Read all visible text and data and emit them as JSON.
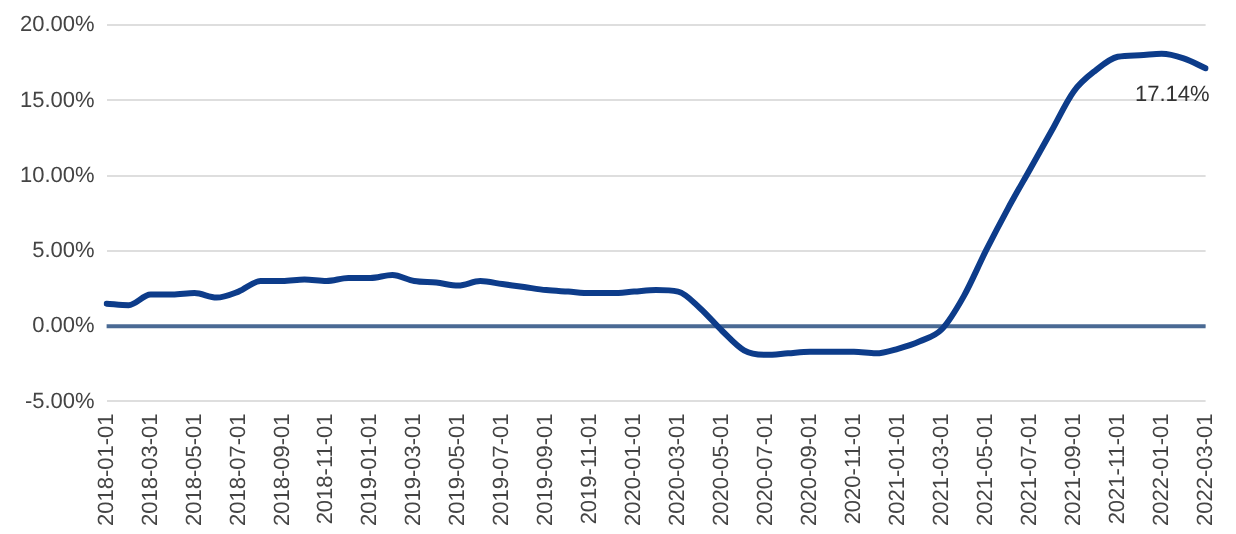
{
  "chart_data": {
    "type": "line",
    "categories": [
      "2018-01-01",
      null,
      "2018-03-01",
      null,
      "2018-05-01",
      null,
      "2018-07-01",
      null,
      "2018-09-01",
      null,
      "2018-11-01",
      null,
      "2019-01-01",
      null,
      "2019-03-01",
      null,
      "2019-05-01",
      null,
      "2019-07-01",
      null,
      "2019-09-01",
      null,
      "2019-11-01",
      null,
      "2020-01-01",
      null,
      "2020-03-01",
      null,
      "2020-05-01",
      null,
      "2020-07-01",
      null,
      "2020-09-01",
      null,
      "2020-11-01",
      null,
      "2021-01-01",
      null,
      "2021-03-01",
      null,
      "2021-05-01",
      null,
      "2021-07-01",
      null,
      "2021-09-01",
      null,
      "2021-11-01",
      null,
      "2022-01-01",
      null,
      "2022-03-01"
    ],
    "series": [
      {
        "color": "#0d3c8a",
        "values": [
          1.5,
          1.4,
          2.1,
          2.1,
          2.2,
          1.9,
          2.3,
          3.0,
          3.0,
          3.1,
          3.0,
          3.2,
          3.2,
          3.4,
          3.0,
          2.9,
          2.7,
          3.0,
          2.8,
          2.6,
          2.4,
          2.3,
          2.2,
          2.2,
          2.3,
          2.4,
          2.3,
          1.2,
          -0.3,
          -1.6,
          -1.9,
          -1.8,
          -1.7,
          -1.7,
          -1.7,
          -1.8,
          -1.5,
          -1.0,
          -0.2,
          2.0,
          5.0,
          7.8,
          10.4,
          13.0,
          15.6,
          17.0,
          17.9,
          18.0,
          18.1,
          17.8,
          17.14
        ],
        "value_labels": [
          null,
          null,
          null,
          null,
          null,
          null,
          null,
          null,
          null,
          null,
          null,
          null,
          null,
          null,
          null,
          null,
          null,
          null,
          null,
          null,
          null,
          null,
          null,
          null,
          null,
          null,
          null,
          null,
          null,
          null,
          null,
          null,
          null,
          null,
          null,
          null,
          null,
          null,
          null,
          null,
          null,
          null,
          null,
          null,
          null,
          null,
          null,
          null,
          null,
          null,
          "17.14%"
        ]
      }
    ],
    "ylim": [
      -5,
      20
    ],
    "yticks": [
      {
        "value": -5,
        "label": "-5.00%"
      },
      {
        "value": 0,
        "label": "0.00%"
      },
      {
        "value": 5,
        "label": "5.00%"
      },
      {
        "value": 10,
        "label": "10.00%"
      },
      {
        "value": 15,
        "label": "15.00%"
      },
      {
        "value": 20,
        "label": "20.00%"
      }
    ],
    "ref_lines": [
      {
        "axis": "y",
        "value": 0,
        "color": "#4a6a94"
      }
    ],
    "grid": "y",
    "legend": false,
    "marker": "none",
    "line_style": "solid"
  }
}
